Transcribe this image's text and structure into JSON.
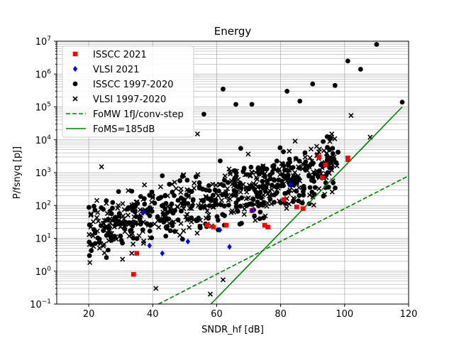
{
  "chart_data": {
    "type": "scatter",
    "title": "Energy",
    "xlabel": "SNDR_hf [dB]",
    "ylabel": "P/fsnyq [pJ]",
    "xlim": [
      10,
      120
    ],
    "ylim_log10": [
      -1,
      7
    ],
    "yscale": "log",
    "grid": "both-major-and-minor-y",
    "legend_position": "top-left",
    "x_ticks": [
      "20",
      "40",
      "60",
      "80",
      "100",
      "120"
    ],
    "x_tick_values": [
      20,
      40,
      60,
      80,
      100,
      120
    ],
    "y_ticks": [
      {
        "base": "10",
        "exp": "−1"
      },
      {
        "base": "10",
        "exp": "0"
      },
      {
        "base": "10",
        "exp": "1"
      },
      {
        "base": "10",
        "exp": "2"
      },
      {
        "base": "10",
        "exp": "3"
      },
      {
        "base": "10",
        "exp": "4"
      },
      {
        "base": "10",
        "exp": "5"
      },
      {
        "base": "10",
        "exp": "6"
      },
      {
        "base": "10",
        "exp": "7"
      }
    ],
    "y_tick_exps": [
      -1,
      0,
      1,
      2,
      3,
      4,
      5,
      6,
      7
    ],
    "legend": [
      {
        "label": "ISSCC 2021",
        "marker": "square",
        "color": "#ff0000"
      },
      {
        "label": "VLSI 2021",
        "marker": "diamond",
        "color": "#0000ff"
      },
      {
        "label": "ISSCC 1997-2020",
        "marker": "circle",
        "color": "#000000"
      },
      {
        "label": "VLSI 1997-2020",
        "marker": "x",
        "color": "#000000"
      },
      {
        "label": "FoMW 1fJ/conv-step",
        "marker": "dashed-line",
        "color": "#008000"
      },
      {
        "label": "FoMS=185dB",
        "marker": "solid-line",
        "color": "#008000"
      }
    ],
    "series": [
      {
        "name": "ISSCC 2021",
        "marker": "square",
        "color": "#ff0000",
        "points": [
          [
            34,
            0.8
          ],
          [
            35,
            3.5
          ],
          [
            57,
            25
          ],
          [
            59,
            22
          ],
          [
            63,
            25
          ],
          [
            71,
            70
          ],
          [
            75,
            25
          ],
          [
            76,
            22
          ],
          [
            81,
            150
          ],
          [
            85,
            90
          ],
          [
            87,
            80
          ],
          [
            92,
            3000
          ],
          [
            93,
            700
          ],
          [
            94,
            1700
          ],
          [
            101,
            2800
          ],
          [
            101,
            2500
          ]
        ]
      },
      {
        "name": "VLSI 2021",
        "marker": "diamond",
        "color": "#0000ff",
        "points": [
          [
            37,
            60
          ],
          [
            39,
            6
          ],
          [
            43,
            3.5
          ],
          [
            51,
            8
          ],
          [
            61,
            18
          ],
          [
            64,
            5.5
          ],
          [
            71,
            70
          ],
          [
            83,
            420
          ]
        ]
      },
      {
        "name": "FoMW 1fJ/conv-step",
        "marker": "dashed-line",
        "color": "#008000",
        "points": [
          [
            41.8,
            0.1
          ],
          [
            120,
            800
          ]
        ]
      },
      {
        "name": "FoMS=185dB",
        "marker": "solid-line",
        "color": "#008000",
        "points": [
          [
            58.2,
            0.1
          ],
          [
            118,
            100000
          ]
        ]
      }
    ]
  }
}
